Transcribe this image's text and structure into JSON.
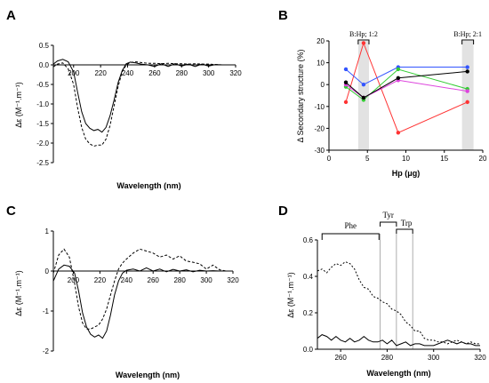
{
  "chart_data": [
    {
      "panel": "A",
      "type": "line",
      "xlabel": "Wavelength (nm)",
      "ylabel": "Δε (M⁻¹.m⁻¹)",
      "xlim": [
        185,
        320
      ],
      "ylim": [
        -2.5,
        0.5
      ],
      "xticks": [
        "200",
        "220",
        "240",
        "260",
        "280",
        "300",
        "320"
      ],
      "yticks": [
        "0.5",
        "0.0",
        "-0.5",
        "-1.0",
        "-1.5",
        "-2.0",
        "-2.5"
      ],
      "series": [
        {
          "style": "solid",
          "x": [
            185,
            188,
            192,
            196,
            200,
            203,
            206,
            209,
            212,
            215,
            218,
            221,
            224,
            227,
            230,
            233,
            236,
            239,
            242,
            246,
            250,
            255,
            260,
            265,
            270,
            275,
            280,
            285,
            290,
            295,
            300,
            305,
            310,
            315
          ],
          "y": [
            0.02,
            0.1,
            0.14,
            0.08,
            -0.18,
            -0.7,
            -1.2,
            -1.5,
            -1.62,
            -1.68,
            -1.65,
            -1.72,
            -1.6,
            -1.3,
            -0.9,
            -0.45,
            -0.15,
            0.03,
            0.07,
            0.05,
            0.02,
            0.0,
            -0.04,
            0.03,
            -0.04,
            0.03,
            -0.03,
            0.02,
            -0.04,
            0.02,
            -0.03,
            0.01,
            0.0,
            0.0
          ]
        },
        {
          "style": "dashed",
          "x": [
            185,
            188,
            192,
            196,
            200,
            203,
            206,
            209,
            212,
            215,
            218,
            221,
            224,
            227,
            230,
            233,
            236,
            239,
            242,
            246,
            250,
            255,
            260,
            265,
            270,
            275,
            280,
            285,
            290,
            295,
            300,
            305,
            310,
            315
          ],
          "y": [
            -0.05,
            0.02,
            0.05,
            -0.1,
            -0.5,
            -1.1,
            -1.6,
            -1.9,
            -2.02,
            -2.08,
            -2.05,
            -2.05,
            -1.9,
            -1.55,
            -1.05,
            -0.55,
            -0.18,
            0.0,
            0.06,
            0.08,
            0.06,
            0.04,
            0.04,
            0.03,
            0.04,
            0.03,
            0.03,
            0.02,
            0.03,
            0.02,
            0.02,
            0.01,
            0.0,
            0.0
          ]
        }
      ]
    },
    {
      "panel": "B",
      "type": "line",
      "xlabel": "Hp (μg)",
      "ylabel": "Δ Secondary structure (%)",
      "xlim": [
        0,
        20
      ],
      "ylim": [
        -30,
        20
      ],
      "xticks": [
        "0",
        "5",
        "10",
        "15",
        "20"
      ],
      "yticks": [
        "20",
        "10",
        "0",
        "-10",
        "-20",
        "-30"
      ],
      "annotations": [
        "B:Hp; 1:2",
        "B:Hp; 2:1"
      ],
      "shaded_x": [
        [
          3.8,
          5.2
        ],
        [
          17.3,
          18.8
        ]
      ],
      "x": [
        2.2,
        4.5,
        9,
        18
      ],
      "series": [
        {
          "color": "#ff3333",
          "values": [
            -8,
            19,
            -22,
            -8
          ]
        },
        {
          "color": "#3355ff",
          "values": [
            7,
            0,
            8,
            8
          ]
        },
        {
          "color": "#33cc33",
          "values": [
            -1,
            -7,
            7,
            -2
          ]
        },
        {
          "color": "#dd44dd",
          "values": [
            0,
            -6,
            2,
            -3
          ]
        },
        {
          "color": "#000000",
          "values": [
            1,
            -6,
            3,
            6
          ]
        }
      ]
    },
    {
      "panel": "C",
      "type": "line",
      "xlabel": "Wavelength (nm)",
      "ylabel": "Δε (M⁻¹.m⁻¹)",
      "xlim": [
        185,
        320
      ],
      "ylim": [
        -2,
        1
      ],
      "xticks": [
        "200",
        "220",
        "240",
        "260",
        "280",
        "300",
        "320"
      ],
      "yticks": [
        "1",
        "0",
        "-1",
        "-2"
      ],
      "series": [
        {
          "style": "solid",
          "x": [
            185,
            189,
            193,
            197,
            201,
            204,
            207,
            210,
            213,
            216,
            219,
            222,
            225,
            228,
            231,
            234,
            237,
            240,
            245,
            250,
            255,
            260,
            265,
            270,
            275,
            280,
            285,
            290,
            295,
            300,
            305,
            310,
            315
          ],
          "y": [
            -0.25,
            0.05,
            0.15,
            0.12,
            -0.05,
            -0.5,
            -1.05,
            -1.4,
            -1.58,
            -1.65,
            -1.6,
            -1.68,
            -1.5,
            -1.1,
            -0.6,
            -0.25,
            -0.05,
            0.02,
            0.05,
            0.0,
            0.08,
            0.0,
            0.05,
            -0.02,
            0.04,
            0.0,
            0.03,
            -0.02,
            0.02,
            0.0,
            0.01,
            0.0,
            0.0
          ]
        },
        {
          "style": "dashed",
          "x": [
            185,
            189,
            193,
            197,
            201,
            204,
            207,
            210,
            213,
            216,
            219,
            222,
            225,
            228,
            231,
            234,
            237,
            240,
            245,
            250,
            255,
            260,
            265,
            270,
            275,
            280,
            285,
            290,
            295,
            300,
            305,
            310,
            315
          ],
          "y": [
            -0.05,
            0.4,
            0.55,
            0.35,
            -0.3,
            -0.9,
            -1.3,
            -1.45,
            -1.45,
            -1.4,
            -1.35,
            -1.2,
            -0.95,
            -0.6,
            -0.25,
            0.05,
            0.2,
            0.3,
            0.45,
            0.55,
            0.5,
            0.45,
            0.35,
            0.4,
            0.3,
            0.38,
            0.25,
            0.22,
            0.18,
            0.05,
            0.15,
            0.03,
            0.0
          ]
        }
      ]
    },
    {
      "panel": "D",
      "type": "line",
      "xlabel": "Wavelength (nm)",
      "ylabel": "Δε (M⁻¹.m⁻¹)",
      "xlim": [
        250,
        320
      ],
      "ylim": [
        0,
        0.6
      ],
      "xticks": [
        "260",
        "280",
        "300",
        "320"
      ],
      "yticks": [
        "0.0",
        "0.2",
        "0.4",
        "0.6"
      ],
      "annotations": [
        "Phe",
        "Tyr",
        "Trp"
      ],
      "vlines": [
        277,
        284,
        291
      ],
      "series": [
        {
          "style": "dashed",
          "x": [
            250,
            252,
            254,
            256,
            258,
            260,
            262,
            264,
            266,
            268,
            270,
            272,
            274,
            276,
            278,
            280,
            282,
            284,
            286,
            288,
            290,
            292,
            294,
            296,
            298,
            300,
            302,
            304,
            306,
            308,
            310,
            312,
            314,
            316,
            318,
            320
          ],
          "y": [
            0.43,
            0.44,
            0.42,
            0.45,
            0.47,
            0.46,
            0.48,
            0.47,
            0.44,
            0.38,
            0.34,
            0.33,
            0.29,
            0.28,
            0.26,
            0.25,
            0.22,
            0.21,
            0.19,
            0.15,
            0.13,
            0.1,
            0.1,
            0.06,
            0.05,
            0.05,
            0.04,
            0.04,
            0.03,
            0.04,
            0.05,
            0.04,
            0.03,
            0.04,
            0.03,
            0.03
          ]
        },
        {
          "style": "solid",
          "x": [
            250,
            252,
            254,
            256,
            258,
            260,
            262,
            264,
            266,
            268,
            270,
            272,
            274,
            276,
            278,
            280,
            282,
            284,
            286,
            288,
            290,
            292,
            294,
            296,
            298,
            300,
            302,
            304,
            306,
            308,
            310,
            312,
            314,
            316,
            318,
            320
          ],
          "y": [
            0.06,
            0.08,
            0.07,
            0.05,
            0.07,
            0.05,
            0.04,
            0.06,
            0.04,
            0.05,
            0.07,
            0.05,
            0.04,
            0.04,
            0.05,
            0.03,
            0.05,
            0.02,
            0.03,
            0.04,
            0.02,
            0.03,
            0.03,
            0.02,
            0.02,
            0.02,
            0.03,
            0.04,
            0.05,
            0.04,
            0.03,
            0.04,
            0.03,
            0.03,
            0.02,
            0.02
          ]
        }
      ]
    }
  ]
}
